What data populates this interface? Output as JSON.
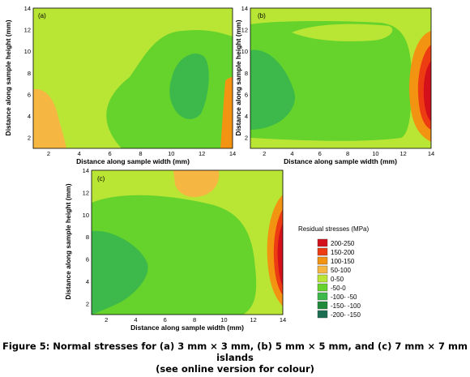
{
  "colors": {
    "band_200_250": "#d4101b",
    "band_150_200": "#ee3c12",
    "band_100_150": "#f39312",
    "band_50_100": "#f6b642",
    "band_0_50": "#b9e635",
    "band_m50_0": "#66d32c",
    "band_m100_m50": "#3cb94a",
    "band_m150_m100": "#1f8a3a",
    "band_m200_m150": "#1b6e52"
  },
  "chart_data": [
    {
      "type": "heatmap",
      "panel_label": "(a)",
      "xlabel": "Distance along sample width (mm)",
      "ylabel": "Distance along sample height (mm)",
      "xlim": [
        1,
        14
      ],
      "ylim": [
        1,
        14
      ],
      "xticks": [
        2,
        4,
        6,
        8,
        10,
        12,
        14
      ],
      "yticks": [
        2,
        4,
        6,
        8,
        10,
        12,
        14
      ],
      "regions": [
        {
          "band": "50-100",
          "location": "lower-left"
        },
        {
          "band": "0-50",
          "location": "background"
        },
        {
          "band": "-50-0",
          "location": "center-right"
        },
        {
          "band": "-100--50",
          "location": "center (x≈10-12, y≈5-10)"
        },
        {
          "band": "100-150",
          "location": "right edge"
        }
      ]
    },
    {
      "type": "heatmap",
      "panel_label": "(b)",
      "xlabel": "Distance along sample width (mm)",
      "ylabel": "Distance along sample height (mm)",
      "xlim": [
        1,
        14
      ],
      "ylim": [
        1,
        14
      ],
      "xticks": [
        2,
        4,
        6,
        8,
        10,
        12,
        14
      ],
      "yticks": [
        2,
        4,
        6,
        8,
        10,
        12,
        14
      ],
      "regions": [
        {
          "band": "-100--50",
          "location": "left (x≈1-7, y≈3-10)"
        },
        {
          "band": "-50-0",
          "location": "center"
        },
        {
          "band": "0-50",
          "location": "top and bottom edges"
        },
        {
          "band": "100-150",
          "location": "right edge"
        },
        {
          "band": "200-250",
          "location": "right edge (y≈4-9)"
        }
      ]
    },
    {
      "type": "heatmap",
      "panel_label": "(c)",
      "xlabel": "Distance along sample width (mm)",
      "ylabel": "Distance along sample height (mm)",
      "xlim": [
        1,
        14
      ],
      "ylim": [
        1,
        14
      ],
      "xticks": [
        2,
        4,
        6,
        8,
        10,
        12,
        14
      ],
      "yticks": [
        2,
        4,
        6,
        8,
        10,
        12,
        14
      ],
      "regions": [
        {
          "band": "-100--50",
          "location": "left (x≈1-6, y≈2-9)"
        },
        {
          "band": "-50-0",
          "location": "center"
        },
        {
          "band": "0-50",
          "location": "top and right"
        },
        {
          "band": "50-100",
          "location": "top center (x≈7-11, y≈11-14)"
        },
        {
          "band": "200-250",
          "location": "right edge (y≈3-9)"
        }
      ]
    }
  ],
  "legend": {
    "title": "Residual stresses (MPa)",
    "items": [
      "200-250",
      "150-200",
      "100-150",
      "50-100",
      "0-50",
      "-50-0",
      "-100- -50",
      "-150- -100",
      "-200- -150"
    ]
  },
  "caption": {
    "line1": "Figure 5: Normal stresses for (a) 3 mm × 3 mm, (b) 5 mm × 5 mm, and (c) 7 mm × 7 mm islands",
    "line2": "(see online version for colour)"
  }
}
